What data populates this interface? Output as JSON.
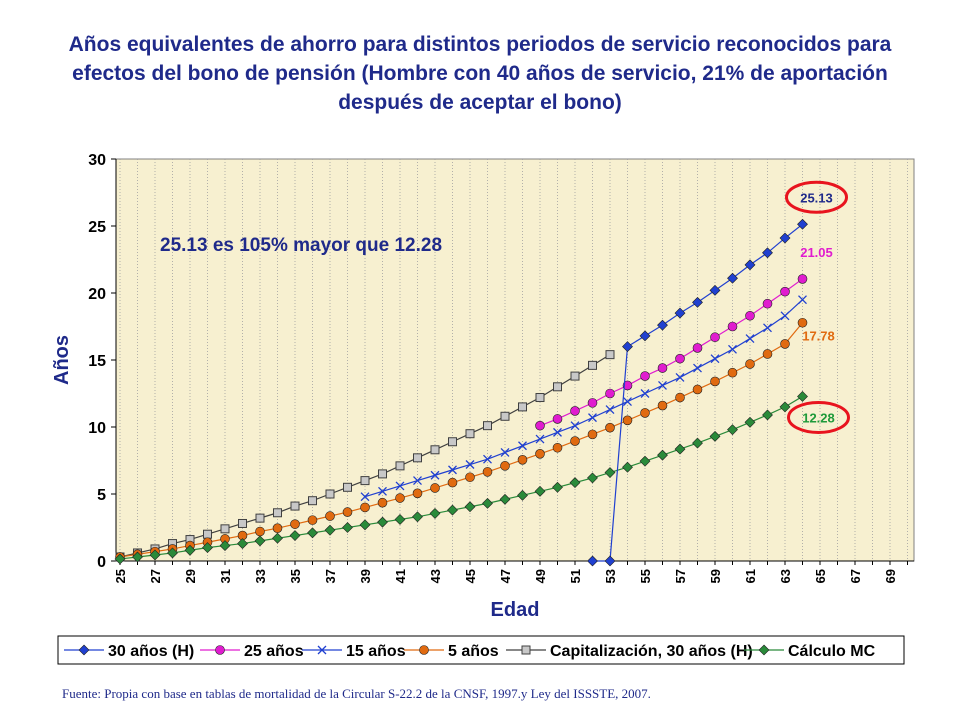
{
  "title": "Años equivalentes de ahorro para distintos periodos de servicio reconocidos para efectos del bono de pensión (Hombre con 40 años de servicio, 21% de aportación después de aceptar el bono)",
  "source": "Fuente: Propia con base en tablas de mortalidad de la Circular S-22.2 de la CNSF, 1997.y Ley del ISSSTE, 2007.",
  "colors": {
    "plot_background": "#f7f0d0",
    "title_text": "#1f2a8a",
    "highlight_circle": "#e8141e"
  },
  "chart_data": {
    "type": "line",
    "xlabel": "Edad",
    "ylabel": "Años",
    "x_ticks": [
      "25",
      "27",
      "29",
      "31",
      "33",
      "35",
      "37",
      "39",
      "41",
      "43",
      "45",
      "47",
      "49",
      "51",
      "53",
      "55",
      "57",
      "59",
      "61",
      "63",
      "65",
      "67",
      "69"
    ],
    "xlim": [
      25,
      70
    ],
    "ylim": [
      0,
      30
    ],
    "y_ticks": [
      0,
      5,
      10,
      15,
      20,
      25,
      30
    ],
    "grid": "vertical dotted lines",
    "legend_position": "bottom",
    "annotation": "25.13 es 105% mayor que 12.28",
    "data_labels": [
      {
        "text": "25.13",
        "series": "30 años (H)",
        "color": "#1f2a8a",
        "circled": true
      },
      {
        "text": "21.05",
        "series": "25 años",
        "color": "#e01ccf",
        "circled": false
      },
      {
        "text": "17.78",
        "series": "5 años",
        "color": "#e06a10",
        "circled": false
      },
      {
        "text": "12.28",
        "series": "Cálculo MC",
        "color": "#1e9a3a",
        "circled": true
      }
    ],
    "series": [
      {
        "name": "30 años (H)",
        "color": "#2040d0",
        "marker": "diamond",
        "x": [
          52,
          53,
          54,
          55,
          56,
          57,
          58,
          59,
          60,
          61,
          62,
          63,
          64
        ],
        "y": [
          0,
          0,
          16.0,
          16.8,
          17.6,
          18.5,
          19.3,
          20.2,
          21.1,
          22.1,
          23.0,
          24.1,
          25.13
        ]
      },
      {
        "name": "25 años",
        "color": "#e01ccf",
        "marker": "circle",
        "x": [
          49,
          50,
          51,
          52,
          53,
          54,
          55,
          56,
          57,
          58,
          59,
          60,
          61,
          62,
          63,
          64
        ],
        "y": [
          10.1,
          10.6,
          11.2,
          11.8,
          12.5,
          13.1,
          13.8,
          14.4,
          15.1,
          15.9,
          16.7,
          17.5,
          18.3,
          19.2,
          20.1,
          21.05
        ]
      },
      {
        "name": "15 años",
        "color": "#2040d0",
        "marker": "x",
        "x": [
          39,
          40,
          41,
          42,
          43,
          44,
          45,
          46,
          47,
          48,
          49,
          50,
          51,
          52,
          53,
          54,
          55,
          56,
          57,
          58,
          59,
          60,
          61,
          62,
          63,
          64
        ],
        "y": [
          4.8,
          5.2,
          5.6,
          6.0,
          6.4,
          6.8,
          7.2,
          7.6,
          8.1,
          8.6,
          9.1,
          9.6,
          10.1,
          10.7,
          11.3,
          11.9,
          12.5,
          13.1,
          13.7,
          14.4,
          15.1,
          15.8,
          16.6,
          17.4,
          18.3,
          19.5
        ]
      },
      {
        "name": "5 años",
        "color": "#e06a10",
        "marker": "circle",
        "x": [
          25,
          26,
          27,
          28,
          29,
          30,
          31,
          32,
          33,
          34,
          35,
          36,
          37,
          38,
          39,
          40,
          41,
          42,
          43,
          44,
          45,
          46,
          47,
          48,
          49,
          50,
          51,
          52,
          53,
          54,
          55,
          56,
          57,
          58,
          59,
          60,
          61,
          62,
          63,
          64
        ],
        "y": [
          0.3,
          0.5,
          0.7,
          0.9,
          1.15,
          1.4,
          1.65,
          1.9,
          2.2,
          2.45,
          2.75,
          3.05,
          3.35,
          3.65,
          4.0,
          4.35,
          4.7,
          5.05,
          5.45,
          5.85,
          6.25,
          6.65,
          7.1,
          7.55,
          8.0,
          8.45,
          8.95,
          9.45,
          9.95,
          10.5,
          11.05,
          11.6,
          12.2,
          12.8,
          13.4,
          14.05,
          14.7,
          15.45,
          16.2,
          17.78
        ]
      },
      {
        "name": "Capitalización, 30 años (H)",
        "color": "#404040",
        "marker": "square",
        "x": [
          25,
          26,
          27,
          28,
          29,
          30,
          31,
          32,
          33,
          34,
          35,
          36,
          37,
          38,
          39,
          40,
          41,
          42,
          43,
          44,
          45,
          46,
          47,
          48,
          49,
          50,
          51,
          52,
          53
        ],
        "y": [
          0.3,
          0.6,
          0.9,
          1.3,
          1.6,
          2.0,
          2.4,
          2.8,
          3.2,
          3.6,
          4.1,
          4.5,
          5.0,
          5.5,
          6.0,
          6.5,
          7.1,
          7.7,
          8.3,
          8.9,
          9.5,
          10.1,
          10.8,
          11.5,
          12.2,
          13.0,
          13.8,
          14.6,
          15.4
        ]
      },
      {
        "name": "Cálculo MC",
        "color": "#2a8a3a",
        "marker": "diamond",
        "x": [
          25,
          26,
          27,
          28,
          29,
          30,
          31,
          32,
          33,
          34,
          35,
          36,
          37,
          38,
          39,
          40,
          41,
          42,
          43,
          44,
          45,
          46,
          47,
          48,
          49,
          50,
          51,
          52,
          53,
          54,
          55,
          56,
          57,
          58,
          59,
          60,
          61,
          62,
          63,
          64
        ],
        "y": [
          0.15,
          0.3,
          0.45,
          0.6,
          0.8,
          1.0,
          1.15,
          1.3,
          1.5,
          1.7,
          1.9,
          2.1,
          2.3,
          2.5,
          2.7,
          2.9,
          3.1,
          3.3,
          3.55,
          3.8,
          4.05,
          4.3,
          4.6,
          4.9,
          5.2,
          5.5,
          5.85,
          6.2,
          6.6,
          7.0,
          7.45,
          7.9,
          8.35,
          8.8,
          9.3,
          9.8,
          10.35,
          10.9,
          11.5,
          12.28
        ]
      }
    ]
  }
}
